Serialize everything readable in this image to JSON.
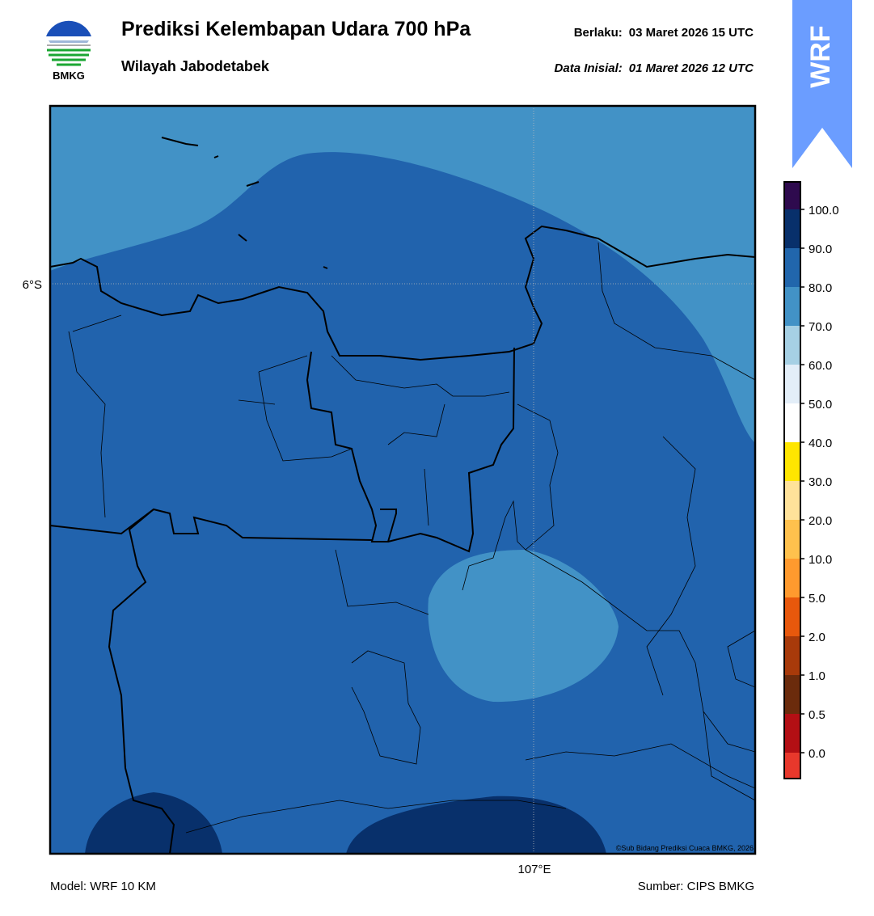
{
  "header": {
    "logo_text": "BMKG",
    "title": "Prediksi Kelembapan Udara 700 hPa",
    "subtitle": "Wilayah Jabodetabek",
    "valid_label": "Berlaku:",
    "valid_time": "03 Maret 2026 15 UTC",
    "init_label": "Data Inisial:",
    "init_time": "01 Maret 2026 12 UTC"
  },
  "badge": "WRF",
  "map": {
    "lat_label": "6°S",
    "lon_label": "107°E",
    "credit": "©Sub Bidang Prediksi Cuaca BMKG, 2026"
  },
  "colorbar": {
    "labels": [
      "100.0",
      "90.0",
      "80.0",
      "70.0",
      "60.0",
      "50.0",
      "40.0",
      "30.0",
      "20.0",
      "10.0",
      "5.0",
      "2.0",
      "1.0",
      "0.5",
      "0.0"
    ],
    "colors": [
      "#2e0a4e",
      "#08306b",
      "#2166ac",
      "#4292c6",
      "#a6d0e4",
      "#e3eef8",
      "#ffffff",
      "#ffe600",
      "#ffe29a",
      "#ffc14d",
      "#ff9a2e",
      "#e8580c",
      "#a83a0a",
      "#6b2b0c",
      "#b30f14",
      "#e8382c"
    ]
  },
  "footer": {
    "model": "Model: WRF 10 KM",
    "source": "Sumber: CIPS BMKG"
  }
}
